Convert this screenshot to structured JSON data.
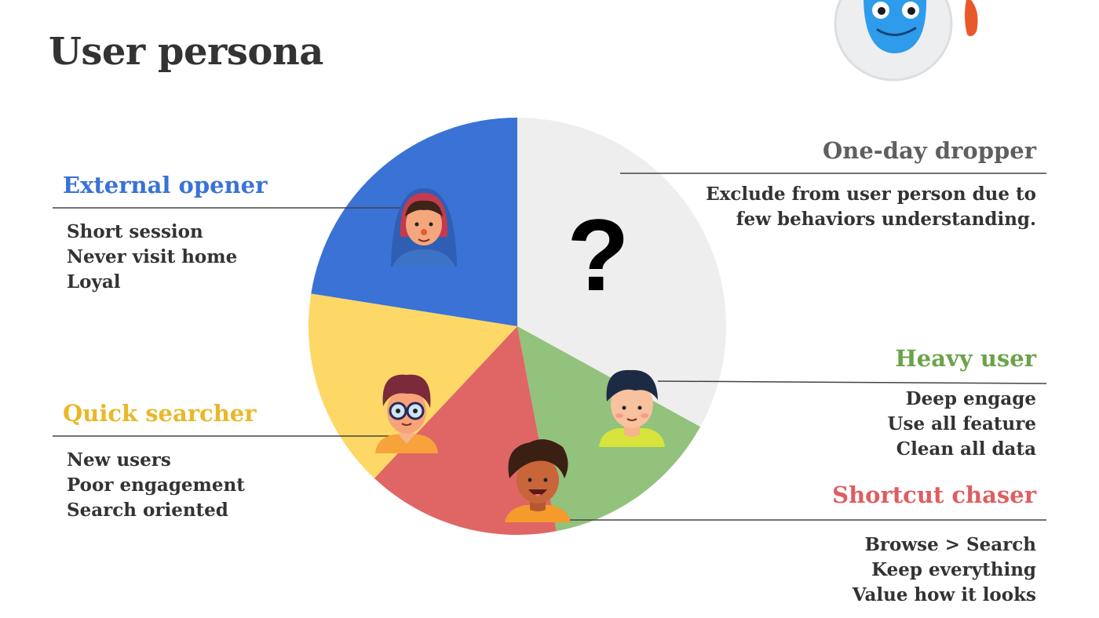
{
  "title": "User persona",
  "colors": {
    "external": "#3A72D6",
    "dropper_fill": "#EEEEEE",
    "heavy": "#92C27C",
    "shortcut": "#E06666",
    "quick": "#FDD866",
    "title_text": "#333333",
    "heavy_text": "#6BA34A",
    "shortcut_text": "#DE5E62",
    "quick_text": "#E8B828",
    "dropper_text": "#5F5F5F"
  },
  "chart_data": {
    "type": "pie",
    "slices": [
      {
        "key": "dropper",
        "value": 33.0,
        "color": "#EEEEEE"
      },
      {
        "key": "heavy",
        "value": 14.0,
        "color": "#92C27C"
      },
      {
        "key": "shortcut",
        "value": 15.0,
        "color": "#E06666"
      },
      {
        "key": "quick",
        "value": 15.5,
        "color": "#FDD866"
      },
      {
        "key": "external",
        "value": 22.5,
        "color": "#3A72D6"
      }
    ]
  },
  "personas": {
    "external": {
      "name": "External opener",
      "traits": [
        "Short session",
        "Never visit home",
        "Loyal"
      ]
    },
    "dropper": {
      "name": "One-day dropper",
      "desc": [
        "Exclude from user person due to",
        "few behaviors  understanding."
      ],
      "symbol": "?"
    },
    "heavy": {
      "name": "Heavy user",
      "traits": [
        "Deep engage",
        "Use all feature",
        "Clean all data"
      ]
    },
    "shortcut": {
      "name": "Shortcut chaser",
      "traits": [
        "Browse > Search",
        "Keep everything",
        "Value how it looks"
      ]
    },
    "quick": {
      "name": "Quick searcher",
      "traits": [
        "New users",
        "Poor engagement",
        "Search oriented"
      ]
    }
  }
}
